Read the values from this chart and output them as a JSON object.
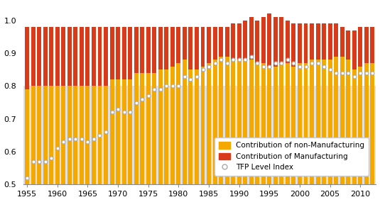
{
  "years": [
    1955,
    1956,
    1957,
    1958,
    1959,
    1960,
    1961,
    1962,
    1963,
    1964,
    1965,
    1966,
    1967,
    1968,
    1969,
    1970,
    1971,
    1972,
    1973,
    1974,
    1975,
    1976,
    1977,
    1978,
    1979,
    1980,
    1981,
    1982,
    1983,
    1984,
    1985,
    1986,
    1987,
    1988,
    1989,
    1990,
    1991,
    1992,
    1993,
    1994,
    1995,
    1996,
    1997,
    1998,
    1999,
    2000,
    2001,
    2002,
    2003,
    2004,
    2005,
    2006,
    2007,
    2008,
    2009,
    2010,
    2011,
    2012
  ],
  "non_manuf_top": [
    0.79,
    0.8,
    0.8,
    0.8,
    0.8,
    0.8,
    0.8,
    0.8,
    0.8,
    0.8,
    0.8,
    0.8,
    0.8,
    0.8,
    0.82,
    0.82,
    0.82,
    0.82,
    0.84,
    0.84,
    0.84,
    0.84,
    0.85,
    0.85,
    0.86,
    0.87,
    0.88,
    0.85,
    0.85,
    0.86,
    0.87,
    0.88,
    0.89,
    0.89,
    0.88,
    0.88,
    0.88,
    0.88,
    0.87,
    0.87,
    0.86,
    0.86,
    0.87,
    0.87,
    0.86,
    0.87,
    0.87,
    0.88,
    0.88,
    0.88,
    0.88,
    0.89,
    0.89,
    0.88,
    0.85,
    0.86,
    0.87,
    0.87
  ],
  "total_top": [
    0.98,
    0.98,
    0.98,
    0.98,
    0.98,
    0.98,
    0.98,
    0.98,
    0.98,
    0.98,
    0.98,
    0.98,
    0.98,
    0.98,
    0.98,
    0.98,
    0.98,
    0.98,
    0.98,
    0.98,
    0.98,
    0.98,
    0.98,
    0.98,
    0.98,
    0.98,
    0.98,
    0.98,
    0.98,
    0.98,
    0.98,
    0.98,
    0.98,
    0.98,
    0.99,
    0.99,
    1.0,
    1.01,
    1.0,
    1.01,
    1.02,
    1.01,
    1.01,
    1.0,
    0.99,
    0.99,
    0.99,
    0.99,
    0.99,
    0.99,
    0.99,
    0.99,
    0.98,
    0.97,
    0.97,
    0.98,
    0.98,
    0.98
  ],
  "tfp_index": [
    0.52,
    0.57,
    0.57,
    0.57,
    0.58,
    0.61,
    0.63,
    0.64,
    0.64,
    0.64,
    0.63,
    0.64,
    0.65,
    0.66,
    0.72,
    0.73,
    0.72,
    0.72,
    0.75,
    0.76,
    0.77,
    0.79,
    0.79,
    0.8,
    0.8,
    0.8,
    0.83,
    0.82,
    0.83,
    0.85,
    0.86,
    0.87,
    0.88,
    0.87,
    0.88,
    0.88,
    0.88,
    0.89,
    0.87,
    0.86,
    0.86,
    0.87,
    0.87,
    0.88,
    0.87,
    0.86,
    0.86,
    0.87,
    0.87,
    0.86,
    0.85,
    0.84,
    0.84,
    0.84,
    0.83,
    0.84,
    0.84,
    0.84
  ],
  "color_nonmanuf": "#F5A800",
  "color_manuf": "#D93B1A",
  "bg_band_low": 0.5,
  "bg_band_high": 0.8,
  "ybase": 0.5,
  "ylim": [
    0.5,
    1.05
  ],
  "xlim_min": 1954.4,
  "xlim_max": 2012.6,
  "xticks": [
    1955,
    1960,
    1965,
    1970,
    1975,
    1980,
    1985,
    1990,
    1995,
    2000,
    2005,
    2010
  ],
  "yticks": [
    0.5,
    0.6,
    0.7,
    0.8,
    0.9,
    1.0
  ],
  "legend_labels": [
    "Contribution of non-Manufacturing",
    "Contribution of Manufacturing",
    "TFP Level Index"
  ],
  "bar_width": 0.7
}
